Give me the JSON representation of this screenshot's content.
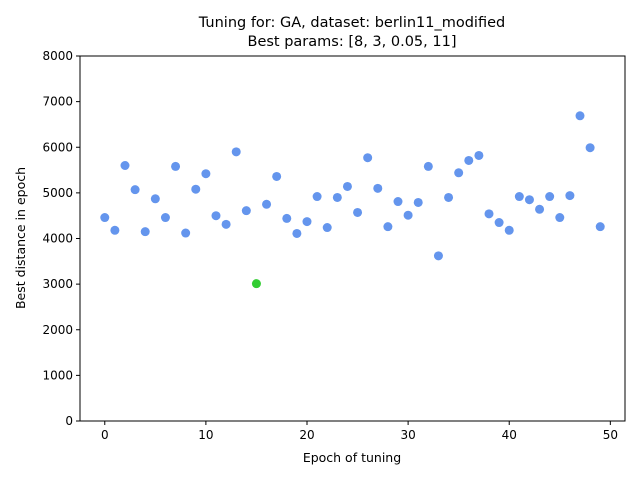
{
  "chart_data": {
    "type": "scatter",
    "title_line1": "Tuning for: GA, dataset: berlin11_modified",
    "title_line2": "Best params: [8, 3, 0.05, 11]",
    "xlabel": "Epoch of tuning",
    "ylabel": "Best distance in epoch",
    "xlim": [
      -2.45,
      51.45
    ],
    "ylim": [
      0,
      8000
    ],
    "x_ticks": [
      0,
      10,
      20,
      30,
      40,
      50
    ],
    "y_ticks": [
      0,
      1000,
      2000,
      3000,
      4000,
      5000,
      6000,
      7000,
      8000
    ],
    "grid": false,
    "point_color": "#6495ED",
    "best_color": "#32CD32",
    "best_index": 15,
    "x": [
      0,
      1,
      2,
      3,
      4,
      5,
      6,
      7,
      8,
      9,
      10,
      11,
      12,
      13,
      14,
      15,
      16,
      17,
      18,
      19,
      20,
      21,
      22,
      23,
      24,
      25,
      26,
      27,
      28,
      29,
      30,
      31,
      32,
      33,
      34,
      35,
      36,
      37,
      38,
      39,
      40,
      41,
      42,
      43,
      44,
      45,
      46,
      47,
      48,
      49
    ],
    "y": [
      4460,
      4180,
      5600,
      5070,
      4150,
      4870,
      4460,
      5580,
      4120,
      5080,
      5420,
      4500,
      4310,
      5900,
      4610,
      3010,
      4750,
      5360,
      4440,
      4110,
      4370,
      4920,
      4240,
      4900,
      5140,
      4570,
      5770,
      5100,
      4260,
      4810,
      4510,
      4790,
      5580,
      3620,
      4900,
      5440,
      5710,
      5820,
      4540,
      4350,
      4180,
      4920,
      4850,
      4640,
      4920,
      4460,
      4940,
      6690,
      5990,
      4260
    ]
  }
}
